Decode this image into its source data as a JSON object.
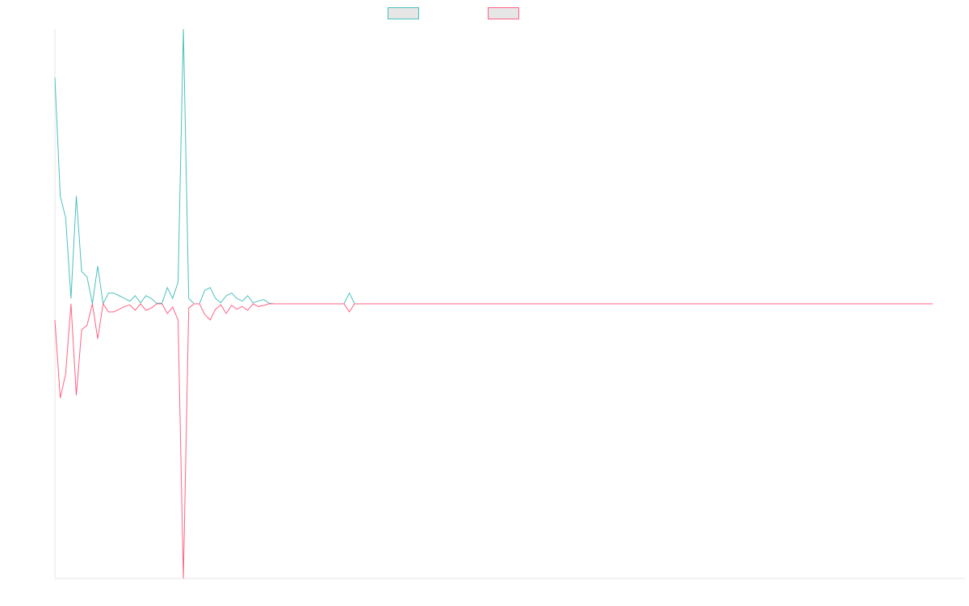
{
  "chart_data": {
    "type": "line",
    "title": "",
    "xlabel": "",
    "ylabel": "",
    "xlim": [
      0,
      170
    ],
    "ylim": [
      -51,
      51
    ],
    "grid": false,
    "legend_placement": "top-center",
    "series": [
      {
        "color": "#4bc0c0",
        "values": [
          42,
          20,
          16,
          1,
          20,
          6,
          5,
          0,
          7,
          0,
          2,
          2,
          1.5,
          1,
          0.5,
          1.5,
          0.2,
          1.5,
          1,
          0.1,
          0.1,
          3,
          1,
          4,
          51,
          1,
          0,
          0,
          2.5,
          3,
          1,
          0.2,
          1.5,
          2,
          1,
          0.5,
          1.5,
          0.2,
          0.5,
          0.8,
          0.1,
          0,
          0,
          0,
          0,
          0,
          0,
          0,
          0,
          0,
          0,
          0,
          0,
          0,
          0,
          2,
          0,
          0,
          0,
          0,
          0,
          0,
          0,
          0,
          0,
          0,
          0,
          0,
          0,
          0,
          0,
          0,
          0,
          0,
          0,
          0,
          0,
          0,
          0,
          0,
          0,
          0,
          0,
          0,
          0,
          0,
          0,
          0,
          0,
          0,
          0,
          0,
          0,
          0,
          0,
          0,
          0,
          0,
          0,
          0,
          0,
          0,
          0,
          0,
          0,
          0,
          0,
          0,
          0,
          0,
          0,
          0,
          0,
          0,
          0,
          0,
          0,
          0,
          0,
          0,
          0,
          0,
          0,
          0,
          0,
          0,
          0,
          0,
          0,
          0,
          0,
          0,
          0,
          0,
          0,
          0,
          0,
          0,
          0,
          0,
          0,
          0,
          0,
          0,
          0,
          0,
          0,
          0,
          0,
          0,
          0,
          0,
          0,
          0,
          0,
          0,
          0,
          0,
          0,
          0,
          0
        ]
      },
      {
        "color": "#ff6384",
        "values": [
          -3,
          -17.5,
          -13,
          0,
          -17,
          -4.8,
          -4,
          0,
          -6.5,
          0,
          -1.5,
          -1.5,
          -1,
          -0.5,
          -0.2,
          -1.2,
          0,
          -1.2,
          -0.8,
          0,
          0,
          -1.8,
          -0.6,
          -3,
          -51,
          -0.8,
          0,
          0,
          -2,
          -3,
          -1,
          -0.2,
          -1.8,
          -0.3,
          -1,
          -0.5,
          -1.2,
          0,
          -0.5,
          -0.3,
          0,
          0,
          0,
          0,
          0,
          0,
          0,
          0,
          0,
          0,
          0,
          0,
          0,
          0,
          0,
          -1.5,
          0,
          0,
          0,
          0,
          0,
          0,
          0,
          0,
          0,
          0,
          0,
          0,
          0,
          0,
          0,
          0,
          0,
          0,
          0,
          0,
          0,
          0,
          0,
          0,
          0,
          0,
          0,
          0,
          0,
          0,
          0,
          0,
          0,
          0,
          0,
          0,
          0,
          0,
          0,
          0,
          0,
          0,
          0,
          0,
          0,
          0,
          0,
          0,
          0,
          0,
          0,
          0,
          0,
          0,
          0,
          0,
          0,
          0,
          0,
          0,
          0,
          0,
          0,
          0,
          0,
          0,
          0,
          0,
          0,
          0,
          0,
          0,
          0,
          0,
          0,
          0,
          0,
          0,
          0,
          0,
          0,
          0,
          0,
          0,
          0,
          0,
          0,
          0,
          0,
          0,
          0,
          0,
          0,
          0,
          0,
          0,
          0,
          0,
          0,
          0,
          0,
          0,
          0,
          0,
          0,
          0,
          0,
          0,
          0
        ]
      }
    ]
  }
}
